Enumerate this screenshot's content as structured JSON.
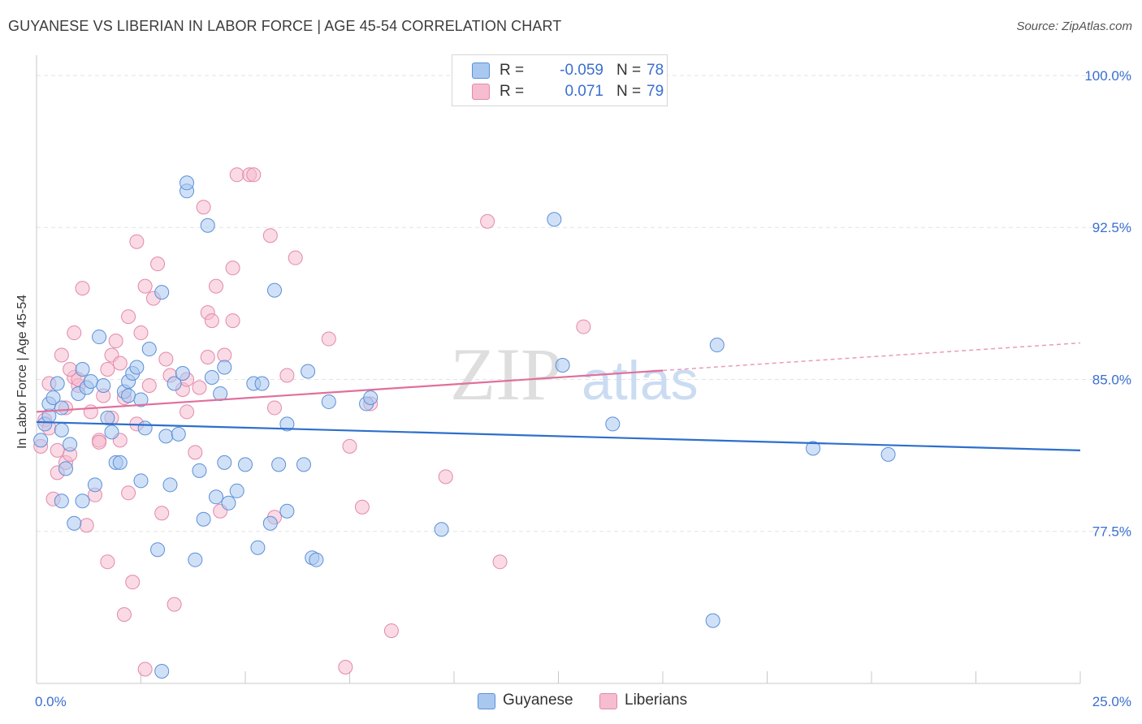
{
  "title": "GUYANESE VS LIBERIAN IN LABOR FORCE | AGE 45-54 CORRELATION CHART",
  "source": "Source: ZipAtlas.com",
  "watermark": {
    "zip": "ZIP",
    "atlas": "atlas"
  },
  "legend": {
    "rows": [
      {
        "r_label": "R =",
        "r_value": "-0.059",
        "n_label": "N =",
        "n_value": "78"
      },
      {
        "r_label": "R =",
        "r_value": "0.071",
        "n_label": "N =",
        "n_value": "79"
      }
    ]
  },
  "bottom_legend": [
    "Guyanese",
    "Liberians"
  ],
  "colors": {
    "guyanese_fill": "#a9c8f0",
    "guyanese_stroke": "#5b8fd8",
    "guyanese_line": "#2d6fcc",
    "liberian_fill": "#f6bcd0",
    "liberian_stroke": "#e389aa",
    "liberian_line": "#e0709b",
    "tick_label": "#3a6fd0",
    "grid": "#e3e3e3"
  },
  "chart_data": {
    "type": "scatter",
    "ylabel": "In Labor Force | Age 45-54",
    "xlim": [
      0,
      25
    ],
    "ylim": [
      70,
      101
    ],
    "x_ticks": [
      "0.0%",
      "25.0%"
    ],
    "y_ticks": [
      {
        "value": 77.5,
        "label": "77.5%"
      },
      {
        "value": 85.0,
        "label": "85.0%"
      },
      {
        "value": 92.5,
        "label": "92.5%"
      },
      {
        "value": 100.0,
        "label": "100.0%"
      }
    ],
    "series": [
      {
        "name": "Guyanese",
        "trend": {
          "x": [
            0,
            25
          ],
          "y": [
            82.9,
            81.5
          ],
          "dashed_from": null
        },
        "points": [
          [
            0.1,
            82.0
          ],
          [
            0.2,
            82.8
          ],
          [
            0.3,
            83.2
          ],
          [
            0.3,
            83.8
          ],
          [
            0.4,
            84.1
          ],
          [
            0.5,
            84.8
          ],
          [
            0.6,
            82.5
          ],
          [
            0.6,
            83.6
          ],
          [
            0.7,
            80.6
          ],
          [
            0.8,
            81.8
          ],
          [
            0.9,
            77.9
          ],
          [
            1.0,
            84.3
          ],
          [
            1.1,
            79.0
          ],
          [
            1.1,
            85.5
          ],
          [
            1.2,
            84.6
          ],
          [
            1.3,
            84.9
          ],
          [
            1.4,
            79.8
          ],
          [
            1.5,
            87.1
          ],
          [
            1.6,
            84.7
          ],
          [
            1.7,
            83.1
          ],
          [
            1.8,
            82.4
          ],
          [
            1.9,
            80.9
          ],
          [
            2.0,
            80.9
          ],
          [
            2.1,
            84.4
          ],
          [
            2.2,
            84.2
          ],
          [
            2.2,
            84.9
          ],
          [
            2.3,
            85.3
          ],
          [
            2.4,
            85.6
          ],
          [
            2.5,
            84.0
          ],
          [
            2.5,
            80.0
          ],
          [
            2.6,
            82.6
          ],
          [
            2.7,
            86.5
          ],
          [
            2.9,
            76.6
          ],
          [
            3.0,
            89.3
          ],
          [
            3.1,
            82.2
          ],
          [
            3.2,
            79.8
          ],
          [
            3.3,
            84.8
          ],
          [
            3.4,
            82.3
          ],
          [
            3.5,
            85.3
          ],
          [
            3.6,
            94.3
          ],
          [
            3.6,
            94.7
          ],
          [
            3.8,
            76.1
          ],
          [
            3.9,
            80.5
          ],
          [
            4.0,
            78.1
          ],
          [
            4.1,
            92.6
          ],
          [
            4.2,
            85.1
          ],
          [
            4.3,
            79.2
          ],
          [
            4.4,
            84.3
          ],
          [
            4.5,
            85.6
          ],
          [
            4.5,
            80.9
          ],
          [
            4.6,
            78.9
          ],
          [
            4.8,
            79.5
          ],
          [
            5.0,
            80.8
          ],
          [
            5.2,
            84.8
          ],
          [
            5.3,
            76.7
          ],
          [
            5.4,
            84.8
          ],
          [
            5.6,
            77.9
          ],
          [
            5.7,
            89.4
          ],
          [
            5.8,
            80.8
          ],
          [
            6.0,
            78.5
          ],
          [
            6.0,
            82.8
          ],
          [
            6.4,
            80.8
          ],
          [
            6.5,
            85.4
          ],
          [
            6.6,
            76.2
          ],
          [
            6.7,
            76.1
          ],
          [
            7.0,
            83.9
          ],
          [
            7.9,
            83.8
          ],
          [
            8.0,
            84.1
          ],
          [
            9.7,
            77.6
          ],
          [
            12.4,
            92.9
          ],
          [
            12.6,
            85.7
          ],
          [
            13.8,
            82.8
          ],
          [
            16.2,
            73.1
          ],
          [
            16.3,
            86.7
          ],
          [
            18.6,
            81.6
          ],
          [
            20.4,
            81.3
          ],
          [
            3.0,
            70.6
          ],
          [
            0.6,
            79.0
          ]
        ]
      },
      {
        "name": "Liberians",
        "trend": {
          "x": [
            0,
            25
          ],
          "y": [
            83.4,
            86.8
          ],
          "dashed_from": 15.0
        },
        "points": [
          [
            0.1,
            81.7
          ],
          [
            0.2,
            83.0
          ],
          [
            0.3,
            82.6
          ],
          [
            0.3,
            84.8
          ],
          [
            0.4,
            79.1
          ],
          [
            0.5,
            81.5
          ],
          [
            0.5,
            80.4
          ],
          [
            0.6,
            86.2
          ],
          [
            0.7,
            83.6
          ],
          [
            0.7,
            80.9
          ],
          [
            0.8,
            81.3
          ],
          [
            0.9,
            85.1
          ],
          [
            0.9,
            87.3
          ],
          [
            1.0,
            84.7
          ],
          [
            1.0,
            85.0
          ],
          [
            1.1,
            89.5
          ],
          [
            1.2,
            77.8
          ],
          [
            1.3,
            83.4
          ],
          [
            1.4,
            79.3
          ],
          [
            1.5,
            82.0
          ],
          [
            1.6,
            84.2
          ],
          [
            1.7,
            85.5
          ],
          [
            1.7,
            76.0
          ],
          [
            1.8,
            86.2
          ],
          [
            1.8,
            83.1
          ],
          [
            1.9,
            86.9
          ],
          [
            2.0,
            82.0
          ],
          [
            2.0,
            85.8
          ],
          [
            2.1,
            73.4
          ],
          [
            2.2,
            88.1
          ],
          [
            2.2,
            79.4
          ],
          [
            2.3,
            75.0
          ],
          [
            2.4,
            91.8
          ],
          [
            2.5,
            87.3
          ],
          [
            2.6,
            89.6
          ],
          [
            2.6,
            70.7
          ],
          [
            2.7,
            84.7
          ],
          [
            2.8,
            89.0
          ],
          [
            2.9,
            90.7
          ],
          [
            3.0,
            78.4
          ],
          [
            3.1,
            86.0
          ],
          [
            3.2,
            85.2
          ],
          [
            3.3,
            73.9
          ],
          [
            3.5,
            84.5
          ],
          [
            3.6,
            83.4
          ],
          [
            3.8,
            81.4
          ],
          [
            3.9,
            84.6
          ],
          [
            4.0,
            93.5
          ],
          [
            4.1,
            88.3
          ],
          [
            4.1,
            86.1
          ],
          [
            4.2,
            87.9
          ],
          [
            4.3,
            89.6
          ],
          [
            4.4,
            78.5
          ],
          [
            4.5,
            86.2
          ],
          [
            4.7,
            87.9
          ],
          [
            4.7,
            90.5
          ],
          [
            4.8,
            95.1
          ],
          [
            5.1,
            95.1
          ],
          [
            5.2,
            95.1
          ],
          [
            5.6,
            92.1
          ],
          [
            5.7,
            78.2
          ],
          [
            5.7,
            83.6
          ],
          [
            6.2,
            91.0
          ],
          [
            7.0,
            87.0
          ],
          [
            7.4,
            70.8
          ],
          [
            7.5,
            81.7
          ],
          [
            7.8,
            78.7
          ],
          [
            8.0,
            83.8
          ],
          [
            8.5,
            72.6
          ],
          [
            9.8,
            80.2
          ],
          [
            10.8,
            92.8
          ],
          [
            11.1,
            76.0
          ],
          [
            13.1,
            87.6
          ],
          [
            6.0,
            85.2
          ],
          [
            1.5,
            81.9
          ],
          [
            2.1,
            84.1
          ],
          [
            0.8,
            85.5
          ],
          [
            3.6,
            85.0
          ],
          [
            2.4,
            82.8
          ]
        ]
      }
    ]
  }
}
